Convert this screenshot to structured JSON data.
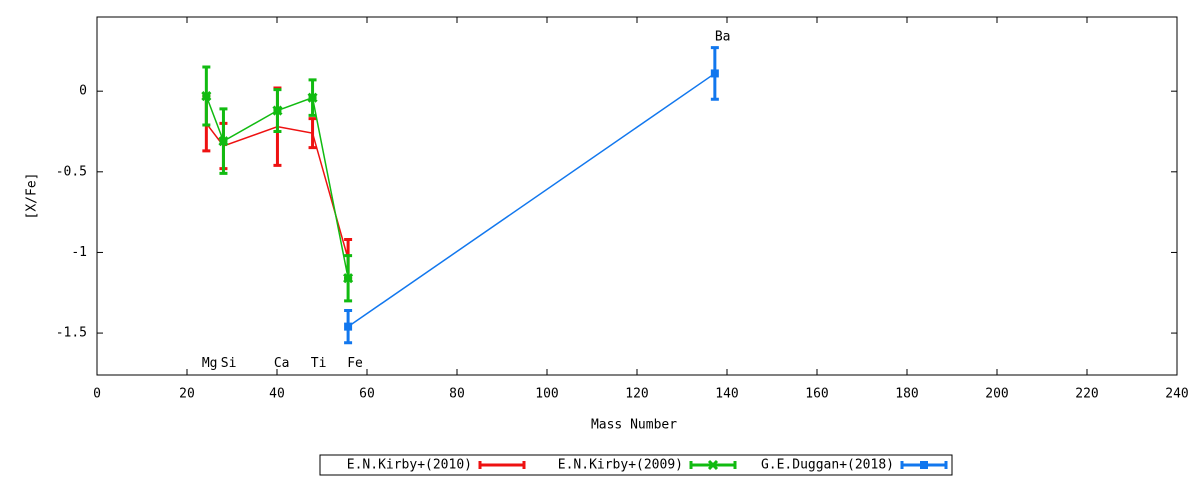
{
  "chart_data": {
    "type": "errorbar-line",
    "xlabel": "Mass Number",
    "ylabel": "[X/Fe]",
    "xlim": [
      0,
      240
    ],
    "ylim": [
      -1.76,
      0.46
    ],
    "xticks": [
      0,
      20,
      40,
      60,
      80,
      100,
      120,
      140,
      160,
      180,
      200,
      220,
      240
    ],
    "yticks": [
      -1.5,
      -1,
      -0.5,
      0
    ],
    "legend": "bottom",
    "series": [
      {
        "name": "E.N.Kirby+(2010)",
        "color": "#ee1111",
        "marker": "none",
        "x": [
          24.3,
          28.1,
          40.1,
          47.9,
          55.8
        ],
        "values": [
          -0.2,
          -0.34,
          -0.22,
          -0.26,
          -1.04
        ],
        "errors": [
          0.17,
          0.14,
          0.24,
          0.09,
          0.12
        ]
      },
      {
        "name": "E.N.Kirby+(2009)",
        "color": "#11bb11",
        "marker": "cross",
        "x": [
          24.3,
          28.1,
          40.1,
          47.9,
          55.8
        ],
        "values": [
          -0.03,
          -0.31,
          -0.12,
          -0.04,
          -1.16
        ],
        "errors": [
          0.18,
          0.2,
          0.13,
          0.11,
          0.14
        ]
      },
      {
        "name": "G.E.Duggan+(2018)",
        "color": "#1177ee",
        "marker": "square",
        "x": [
          55.8,
          137.3
        ],
        "values": [
          -1.46,
          0.11
        ],
        "errors": [
          0.1,
          0.16
        ]
      }
    ],
    "annotations": [
      {
        "text": "Mg",
        "x": 23.3,
        "y": -1.69
      },
      {
        "text": "Si",
        "x": 27.5,
        "y": -1.69
      },
      {
        "text": "Ca",
        "x": 39.3,
        "y": -1.69
      },
      {
        "text": "Ti",
        "x": 47.5,
        "y": -1.69
      },
      {
        "text": "Fe",
        "x": 55.6,
        "y": -1.69
      },
      {
        "text": "Ba",
        "x": 137.3,
        "y": 0.335
      }
    ]
  }
}
